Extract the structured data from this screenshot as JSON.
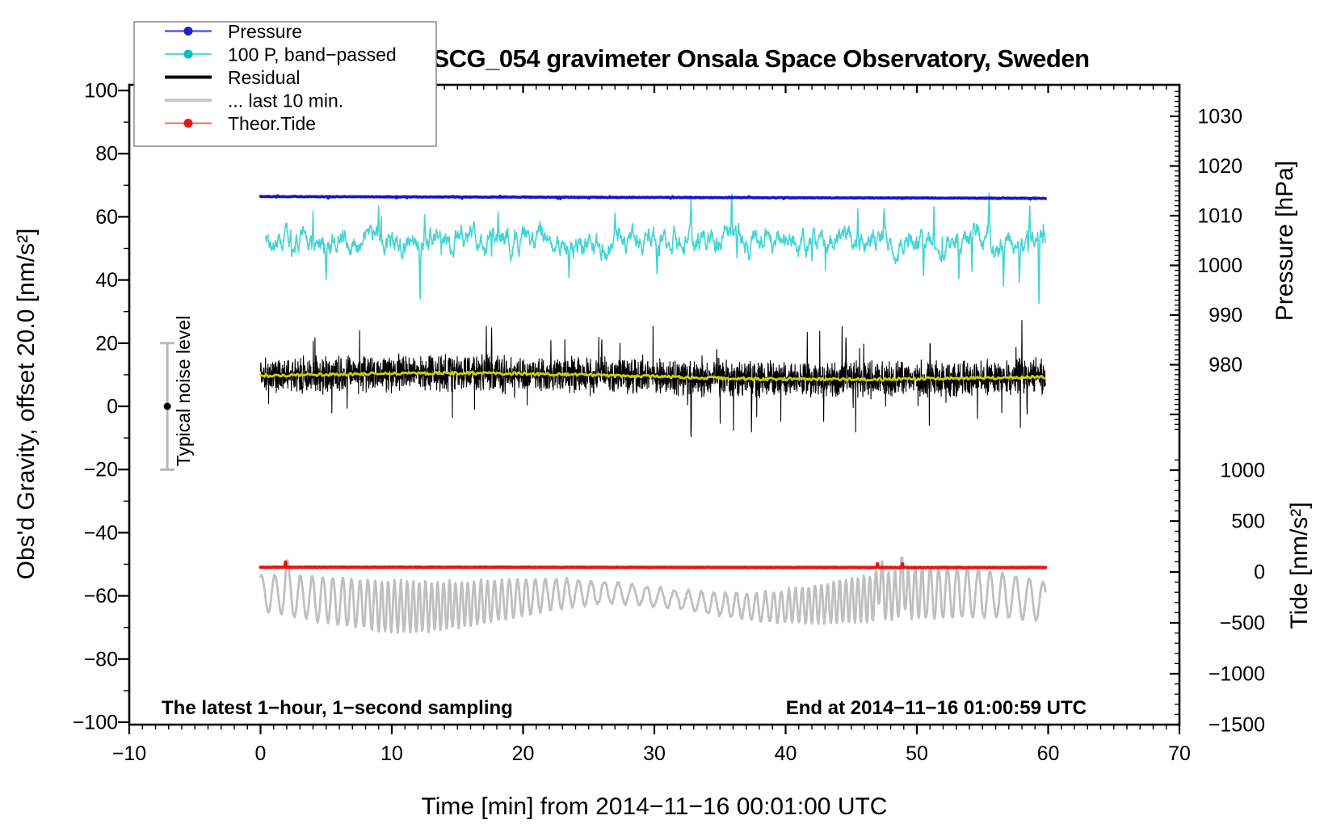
{
  "chart_data": {
    "type": "line",
    "title": "SCG_054 gravimeter Onsala Space Observatory, Sweden",
    "annotations": {
      "bottom_left": "The latest 1−hour, 1−second sampling",
      "bottom_right": "End at 2014−11−16 01:00:59 UTC",
      "noise_bar_label": "Typical noise level"
    },
    "axes": {
      "x": {
        "label": "Time [min] from 2014−11−16 00:01:00 UTC",
        "range": [
          -10,
          70
        ],
        "major_ticks": [
          -10,
          0,
          10,
          20,
          30,
          40,
          50,
          60,
          70
        ],
        "minor_step": 1
      },
      "left": {
        "label": "Obs'd Gravity, offset 20.0 [nm/s²]",
        "range": [
          -100,
          100
        ],
        "major_ticks": [
          100,
          80,
          60,
          40,
          20,
          0,
          -20,
          -40,
          -60,
          -80,
          -100
        ],
        "minor_step": 10
      },
      "right_pressure": {
        "label": "Pressure [hPa]",
        "major_ticks": [
          1030,
          1020,
          1010,
          1000,
          990,
          980
        ],
        "minor_step": 1,
        "minor_range": [
          967,
          1035
        ]
      },
      "right_tide": {
        "label": "Tide [nm/s²]",
        "major_ticks": [
          1000,
          500,
          0,
          -500,
          -1000,
          -1500
        ],
        "minor_step": 100,
        "minor_range": [
          -1500,
          1100
        ]
      }
    },
    "legend": [
      {
        "label": "Pressure",
        "line_color": "#5b5bd8",
        "line_width": 2.5,
        "dot_color": "#1f1fd1"
      },
      {
        "label": "100 P, band−passed",
        "line_color": "#62d8d8",
        "line_width": 2.5,
        "dot_color": "#00bfbf"
      },
      {
        "label": "Residual",
        "line_color": "#000000",
        "line_width": 4,
        "dot_color": null
      },
      {
        "label": "... last 10 min.",
        "line_color": "#c9c9c9",
        "line_width": 4,
        "dot_color": null
      },
      {
        "label": "Theor.Tide",
        "line_color": "#f26b6b",
        "line_width": 2,
        "dot_color": "#e81414"
      }
    ],
    "series": [
      {
        "id": "band_passed",
        "name": "100 P, band−passed",
        "axis": "gravity",
        "color": "#45d4d4",
        "width": 1.6,
        "mean": 52,
        "ar": 0.86,
        "noise": 2.2,
        "time_span": [
          0.4,
          59.8
        ],
        "spikes": [
          [
            2.3,
            8
          ],
          [
            4.0,
            9
          ],
          [
            5.0,
            -7
          ],
          [
            9.0,
            9
          ],
          [
            12.15,
            -18
          ],
          [
            12.5,
            7
          ],
          [
            17.6,
            -10
          ],
          [
            18.1,
            11
          ],
          [
            23.5,
            -8
          ],
          [
            27,
            8
          ],
          [
            30.2,
            -9
          ],
          [
            32.8,
            13
          ],
          [
            35.9,
            12
          ],
          [
            36.3,
            -9
          ],
          [
            42,
            -8
          ],
          [
            45.5,
            9
          ],
          [
            47.5,
            9
          ],
          [
            50.5,
            -11
          ],
          [
            51.3,
            12
          ],
          [
            53.2,
            -10
          ],
          [
            54.2,
            -12
          ],
          [
            55.5,
            11
          ],
          [
            56.6,
            -11
          ],
          [
            57.8,
            -13
          ],
          [
            58.6,
            10
          ],
          [
            59.3,
            -24
          ]
        ]
      },
      {
        "id": "pressure",
        "name": "Pressure",
        "axis": "pressure",
        "color": "#1313cf",
        "width": 3.5,
        "mean": 1013.85,
        "trend_per_hour": -0.35,
        "noise": 0.07,
        "time_span": [
          0,
          59.8
        ],
        "spikes": []
      },
      {
        "id": "residual",
        "name": "Residual",
        "axis": "gravity",
        "color": "#000000",
        "width": 1.1,
        "mean": 9.2,
        "noise": 6.5,
        "time_span": [
          0,
          59.8
        ],
        "spikes": [
          [
            17.2,
            15
          ],
          [
            17.6,
            17
          ],
          [
            26,
            14
          ],
          [
            32.8,
            -21
          ],
          [
            37.4,
            -16
          ],
          [
            44.3,
            18
          ],
          [
            44.6,
            16
          ],
          [
            51,
            13
          ],
          [
            58,
            14
          ],
          [
            58.4,
            -12
          ]
        ]
      },
      {
        "id": "residual_smooth",
        "name": "Residual smoothed",
        "axis": "gravity",
        "color": "#cfcf00",
        "width": 2.8,
        "mean": 9.2,
        "noise": 0.9,
        "time_span": [
          0,
          59.8
        ],
        "spikes": []
      },
      {
        "id": "residual_last10",
        "name": "... last 10 min.",
        "axis": "gravity",
        "color": "#bfbfbf",
        "width": 2.8,
        "mean": -61.2,
        "time_span": [
          0,
          59.8
        ],
        "spikes": [
          [
            2.0,
            5
          ],
          [
            47.2,
            6.5
          ],
          [
            48.9,
            6
          ]
        ]
      },
      {
        "id": "theor_tide",
        "name": "Theor.Tide",
        "axis": "tide",
        "color": "#e81414",
        "width": 4,
        "mean": 45,
        "noise": 2,
        "time_span": [
          0,
          59.8
        ],
        "spikes": [
          [
            1.9,
            50
          ],
          [
            47.0,
            40
          ],
          [
            48.9,
            38
          ]
        ]
      }
    ],
    "noise_bar": {
      "x_time": -7.1,
      "center_value": 0,
      "half_range": 20,
      "bar_color": "#b9b9b9",
      "dot_color": "#000000"
    }
  }
}
